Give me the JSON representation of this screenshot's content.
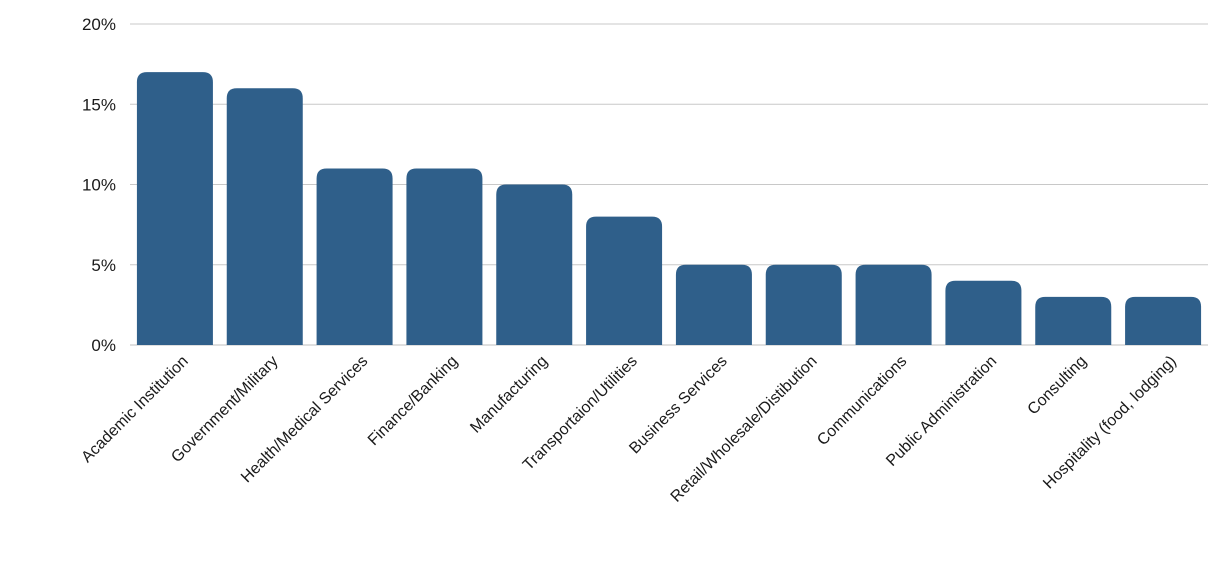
{
  "chart_data": {
    "type": "bar",
    "title": "",
    "xlabel": "",
    "ylabel": "",
    "ylim": [
      0,
      20
    ],
    "yticks": [
      0,
      5,
      10,
      15,
      20
    ],
    "ytick_labels": [
      "0%",
      "5%",
      "10%",
      "15%",
      "20%"
    ],
    "grid": true,
    "legend": "none",
    "bar_color": "#2f5f8a",
    "categories": [
      "Academic Institution",
      "Government/Military",
      "Health/Medical Services",
      "Finance/Banking",
      "Manufacturing",
      "Transportaion/Utilities",
      "Business Services",
      "Retail/Wholesale/Distibution",
      "Communications",
      "Public Administration",
      "Consulting",
      "Hospitality (food, lodging)"
    ],
    "values": [
      17,
      16,
      11,
      11,
      10,
      8,
      5,
      5,
      5,
      4,
      3,
      3
    ]
  }
}
